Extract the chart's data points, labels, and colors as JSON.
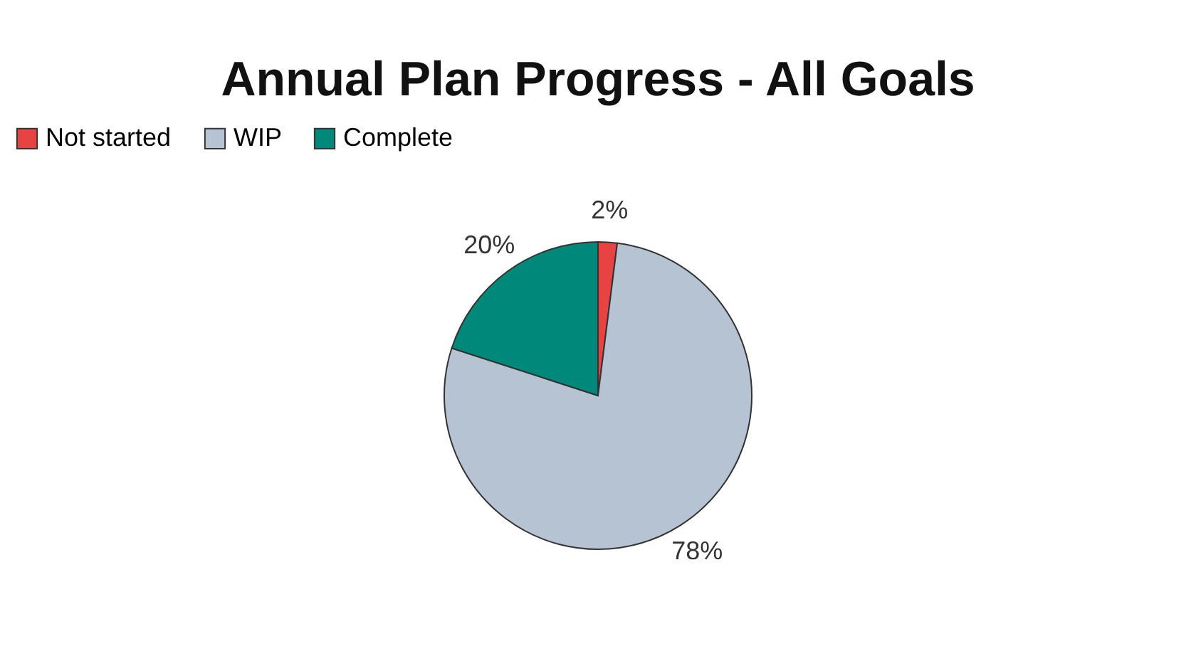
{
  "chart_data": {
    "type": "pie",
    "title": "Annual Plan Progress - All Goals",
    "categories": [
      "Not started",
      "WIP",
      "Complete"
    ],
    "values": [
      2,
      78,
      20
    ],
    "colors": [
      "#e84343",
      "#b5c3d3",
      "#00897b"
    ],
    "value_labels": [
      "2%",
      "78%",
      "20%"
    ],
    "legend": "top"
  }
}
